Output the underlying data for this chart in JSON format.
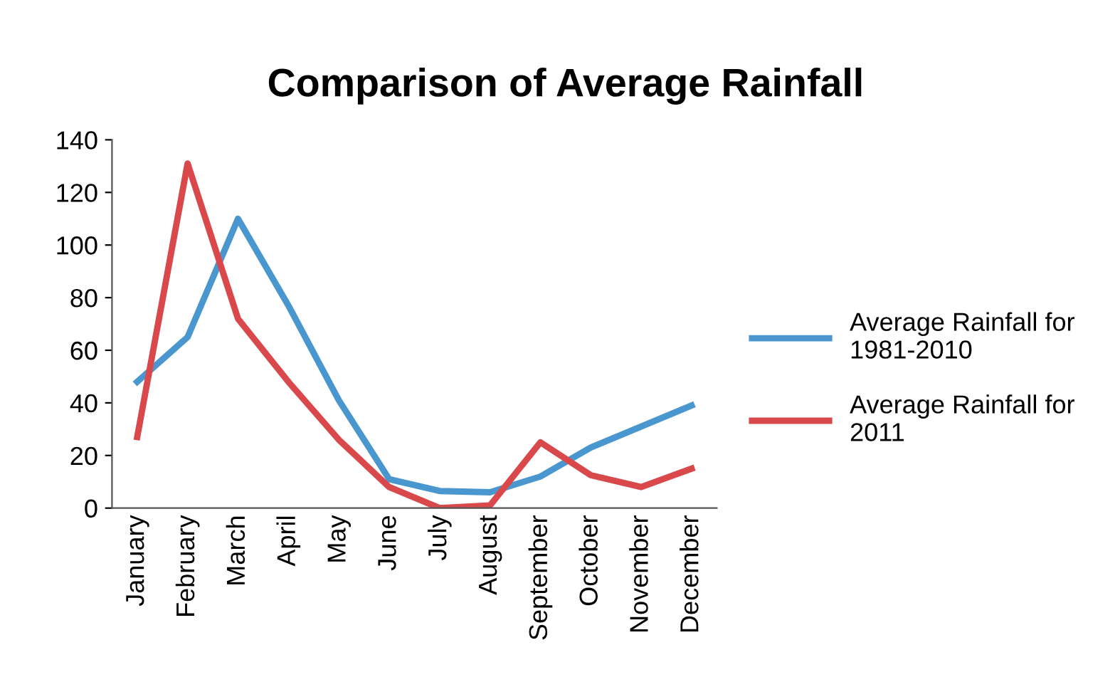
{
  "chart_data": {
    "type": "line",
    "title": "Comparison of Average Rainfall",
    "categories": [
      "January",
      "February",
      "March",
      "April",
      "May",
      "June",
      "July",
      "August",
      "September",
      "October",
      "November",
      "December"
    ],
    "series": [
      {
        "name": "Average Rainfall for 1981-2010",
        "color": "#4a97cf",
        "values": [
          48,
          65,
          110,
          77,
          41,
          11,
          6.5,
          6,
          12,
          23,
          31,
          39
        ]
      },
      {
        "name": "Average Rainfall for 2011",
        "color": "#d9494c",
        "values": [
          27,
          131,
          72,
          48,
          26,
          8,
          0,
          1,
          25,
          12.5,
          8,
          15
        ]
      }
    ],
    "ylim": [
      0,
      140
    ],
    "yticks": [
      0,
      20,
      40,
      60,
      80,
      100,
      120,
      140
    ],
    "legend": "right",
    "grid": false,
    "marker": "none",
    "line_style": "solid"
  }
}
